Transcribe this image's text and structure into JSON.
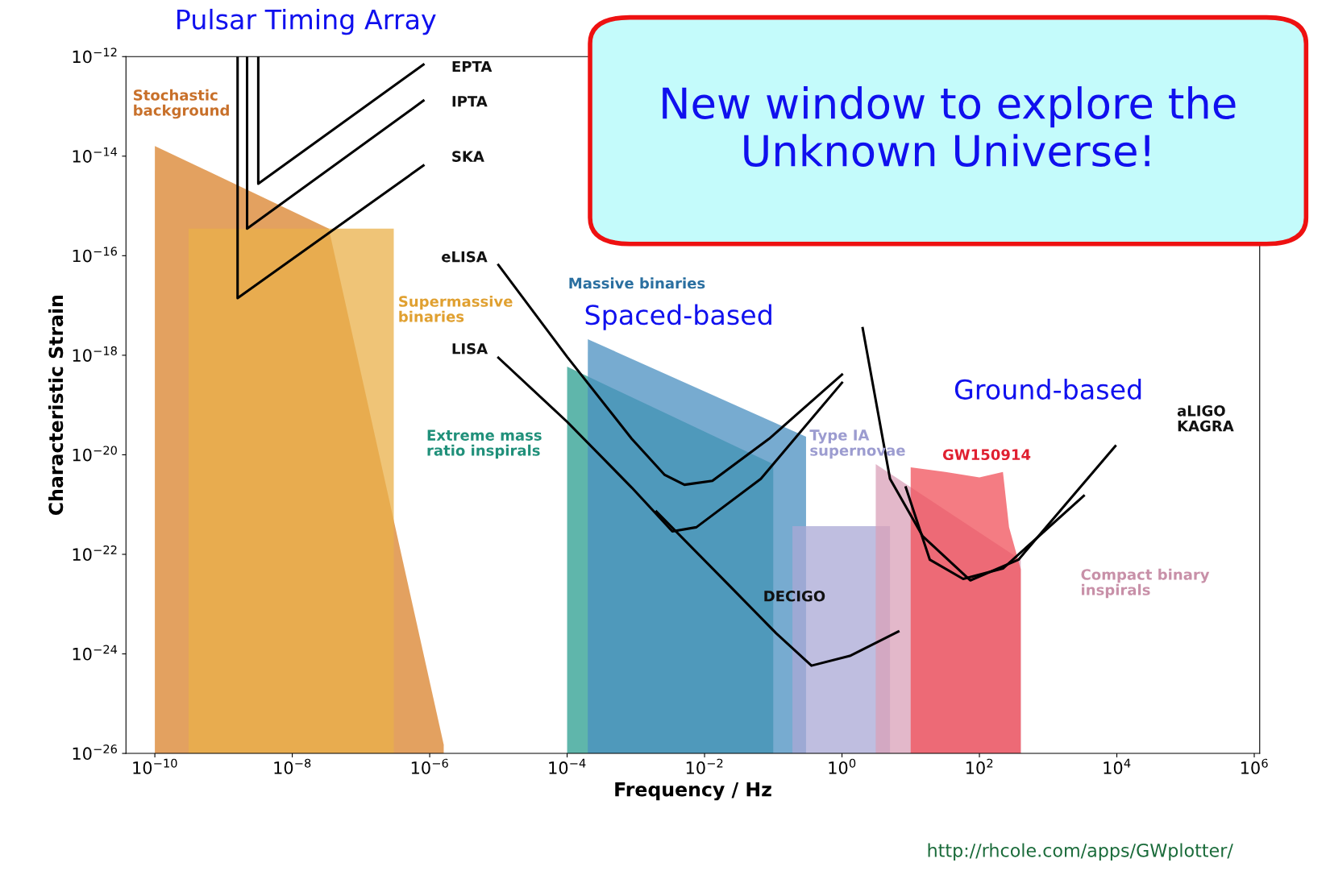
{
  "chart_data": {
    "type": "line",
    "xlabel": "Frequency / Hz",
    "ylabel": "Characteristic Strain",
    "log": "xy",
    "grid": false,
    "xlim": [
      3.8e-11,
      1200000.0
    ],
    "ylim": [
      1e-26,
      1e-12
    ],
    "xticks": [
      {
        "value": 1e-10,
        "label": "10$^{−10}$"
      },
      {
        "value": 1e-08,
        "label": "10$^{−8}$"
      },
      {
        "value": 1e-06,
        "label": "10$^{−6}$"
      },
      {
        "value": 0.0001,
        "label": "10$^{−4}$"
      },
      {
        "value": 0.01,
        "label": "10$^{−2}$"
      },
      {
        "value": 1,
        "label": "10$^{0}$"
      },
      {
        "value": 100,
        "label": "10$^{2}$"
      },
      {
        "value": 10000.0,
        "label": "10$^{4}$"
      },
      {
        "value": 1000000.0,
        "label": "10$^{6}$"
      }
    ],
    "yticks": [
      {
        "value": 1e-26,
        "label": "10$^{−26}$"
      },
      {
        "value": 1e-24,
        "label": "10$^{−24}$"
      },
      {
        "value": 1e-22,
        "label": "10$^{−22}$"
      },
      {
        "value": 1e-20,
        "label": "10$^{−20}$"
      },
      {
        "value": 1e-18,
        "label": "10$^{−18}$"
      },
      {
        "value": 1e-16,
        "label": "10$^{−16}$"
      },
      {
        "value": 1e-14,
        "label": "10$^{−14}$"
      },
      {
        "value": 1e-12,
        "label": "10$^{−12}$"
      }
    ],
    "series": [
      {
        "type": "area",
        "color": "#d9822b",
        "x": [
          1e-10,
          3.4e-08,
          1.6e-06
        ],
        "values": [
          1.6e-14,
          3.5e-16,
          1.5e-26
        ]
      },
      {
        "type": "area",
        "color": "#e9b04a",
        "x": [
          3.1e-10,
          3e-07
        ],
        "values": [
          3.5e-16,
          3.5e-16
        ]
      },
      {
        "type": "area",
        "color": "#2a9d8f",
        "x": [
          0.0001,
          0.1
        ],
        "values": [
          5.9e-19,
          6.5e-21
        ]
      },
      {
        "type": "area",
        "color": "#4a8fc0",
        "x": [
          0.0002,
          0.3
        ],
        "values": [
          2.1e-18,
          2.3e-20
        ]
      },
      {
        "type": "area",
        "color": "#a9a8d6",
        "x": [
          0.19,
          5.0
        ],
        "values": [
          3.7e-22,
          3.7e-22
        ]
      },
      {
        "type": "area",
        "color": "#d9a0b8",
        "x": [
          3.1,
          400
        ],
        "values": [
          6.5e-21,
          7.8e-23
        ]
      },
      {
        "type": "area",
        "color": "#f0505a",
        "x": [
          10,
          32,
          100,
          220,
          270,
          400
        ],
        "values": [
          5.6e-21,
          4.5e-21,
          3.5e-21,
          4.5e-21,
          3.5e-22,
          5e-23
        ]
      },
      {
        "color": "#000000",
        "x": [
          3.2e-09,
          3.2e-09,
          8.1e-07
        ],
        "values": [
          1e-12,
          2.8e-15,
          6.9e-13
        ]
      },
      {
        "color": "#000000",
        "x": [
          2.2e-09,
          2.2e-09,
          8.1e-07
        ],
        "values": [
          1e-12,
          3.5e-16,
          1.3e-13
        ]
      },
      {
        "color": "#000000",
        "x": [
          1.6e-09,
          1.6e-09,
          8.1e-07
        ],
        "values": [
          1e-12,
          1.4e-17,
          6.5e-15
        ]
      },
      {
        "color": "#000000",
        "x": [
          1e-05,
          0.0001,
          0.00087,
          0.0026,
          0.0051,
          0.013,
          0.087,
          1.0
        ],
        "values": [
          6.5e-17,
          9.3e-19,
          2.1e-20,
          4e-21,
          2.5e-21,
          3e-21,
          2.1e-20,
          4.1e-19
        ]
      },
      {
        "color": "#000000",
        "x": [
          1e-05,
          0.0001,
          0.00087,
          0.0034,
          0.0076,
          0.066,
          1.0
        ],
        "values": [
          8.9e-19,
          4.6e-20,
          2.2e-21,
          2.9e-22,
          3.5e-22,
          3.3e-21,
          2.8e-19
        ]
      },
      {
        "color": "#000000",
        "x": [
          0.002,
          0.022,
          0.11,
          0.36,
          1.3,
          6.6
        ],
        "values": [
          7.2e-22,
          2.5e-23,
          2.6e-24,
          5.8e-25,
          9.1e-25,
          2.8e-24
        ]
      },
      {
        "color": "#000000",
        "x": [
          2.0,
          5.0,
          15,
          74,
          370,
          9500
        ],
        "values": [
          3.5e-18,
          3.3e-21,
          2.3e-22,
          3e-23,
          7.8e-23,
          1.5e-20
        ]
      },
      {
        "color": "#000000",
        "x": [
          8.5,
          19,
          58,
          220,
          3300
        ],
        "values": [
          2.2e-21,
          7.8e-23,
          3.2e-23,
          5.2e-23,
          1.5e-21
        ]
      }
    ],
    "annotations": [
      "Pulsar Timing Array",
      "Stochastic\nbackground",
      "EPTA",
      "IPTA",
      "SKA",
      "eLISA",
      "Supermassive\nbinaries",
      "LISA",
      "Massive binaries",
      "Spaced-based",
      "Extreme mass\nratio inspirals",
      "Type IA\nsupernovae",
      "GW150914",
      "Ground-based",
      "aLIGO\nKAGRA",
      "Compact binary\ninspirals",
      "DECIGO",
      "New window to explore the\nUnknown Universe!",
      "http://rhcole.com/apps/GWplotter/"
    ]
  }
}
